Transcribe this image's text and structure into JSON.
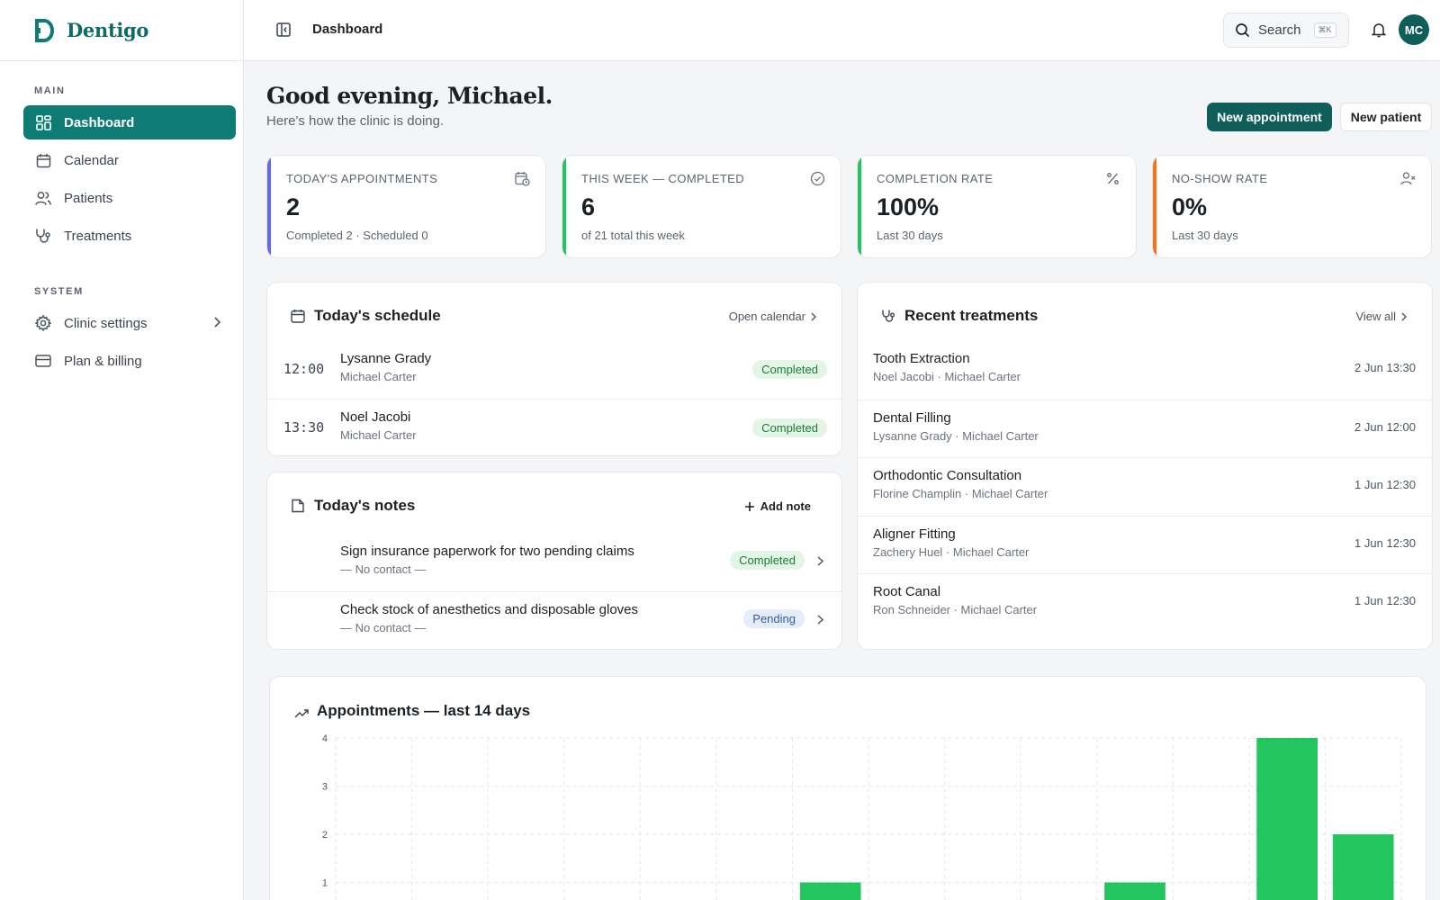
{
  "app": {
    "name": "Dentigo"
  },
  "sidebar": {
    "sections": [
      {
        "label": "MAIN"
      },
      {
        "label": "SYSTEM"
      }
    ],
    "items": [
      {
        "label": "Dashboard",
        "icon": "dashboard-icon",
        "active": true
      },
      {
        "label": "Calendar",
        "icon": "calendar-icon"
      },
      {
        "label": "Patients",
        "icon": "users-icon"
      },
      {
        "label": "Treatments",
        "icon": "stethoscope-icon"
      },
      {
        "label": "Clinic settings",
        "icon": "gear-icon"
      },
      {
        "label": "Plan & billing",
        "icon": "credit-card-icon"
      }
    ]
  },
  "topbar": {
    "breadcrumb": "Dashboard",
    "search_label": "Search",
    "search_shortcut": "⌘K",
    "avatar_initials": "MC"
  },
  "greeting": {
    "title": "Good evening, Michael.",
    "subtitle": "Here's how the clinic is doing."
  },
  "actions": {
    "new_appointment": "New appointment",
    "new_patient": "New patient"
  },
  "stats": [
    {
      "label": "TODAY'S APPOINTMENTS",
      "value": "2",
      "sub": "Completed 2 · Scheduled 0",
      "color": "#6366f1",
      "icon": "calendar-clock-icon"
    },
    {
      "label": "THIS WEEK — COMPLETED",
      "value": "6",
      "sub": "of 21 total this week",
      "color": "#22c55e",
      "icon": "check-circle-icon"
    },
    {
      "label": "COMPLETION RATE",
      "value": "100%",
      "sub": "Last 30 days",
      "color": "#22c55e",
      "icon": "percent-icon"
    },
    {
      "label": "NO-SHOW RATE",
      "value": "0%",
      "sub": "Last 30 days",
      "color": "#f97316",
      "icon": "user-x-icon"
    }
  ],
  "schedule": {
    "title": "Today's schedule",
    "link": "Open calendar",
    "rows": [
      {
        "time": "12:00",
        "patient": "Lysanne Grady",
        "doctor": "Michael Carter",
        "status": "Completed"
      },
      {
        "time": "13:30",
        "patient": "Noel Jacobi",
        "doctor": "Michael Carter",
        "status": "Completed"
      }
    ]
  },
  "notes": {
    "title": "Today's notes",
    "add_label": "Add note",
    "rows": [
      {
        "text": "Sign insurance paperwork for two pending claims",
        "contact": "— No contact —",
        "status": "Completed"
      },
      {
        "text": "Check stock of anesthetics and disposable gloves",
        "contact": "— No contact —",
        "status": "Pending"
      }
    ]
  },
  "treatments": {
    "title": "Recent treatments",
    "link": "View all",
    "rows": [
      {
        "name": "Tooth Extraction",
        "people": "Noel Jacobi · Michael Carter",
        "date": "2 Jun 13:30"
      },
      {
        "name": "Dental Filling",
        "people": "Lysanne Grady · Michael Carter",
        "date": "2 Jun 12:00"
      },
      {
        "name": "Orthodontic Consultation",
        "people": "Florine Champlin · Michael Carter",
        "date": "1 Jun 12:30"
      },
      {
        "name": "Aligner Fitting",
        "people": "Zachery Huel · Michael Carter",
        "date": "1 Jun 12:30"
      },
      {
        "name": "Root Canal",
        "people": "Ron Schneider · Michael Carter",
        "date": "1 Jun 12:30"
      }
    ]
  },
  "chart_data": {
    "type": "bar",
    "title": "Appointments — last 14 days",
    "values": [
      0,
      0,
      0,
      0,
      0,
      0,
      1,
      0,
      0,
      0,
      1,
      0,
      4,
      2
    ],
    "ylim": [
      0,
      4
    ],
    "yticks": [
      4,
      3,
      2,
      1
    ],
    "grid": true,
    "bar_color": "#22c55e"
  }
}
